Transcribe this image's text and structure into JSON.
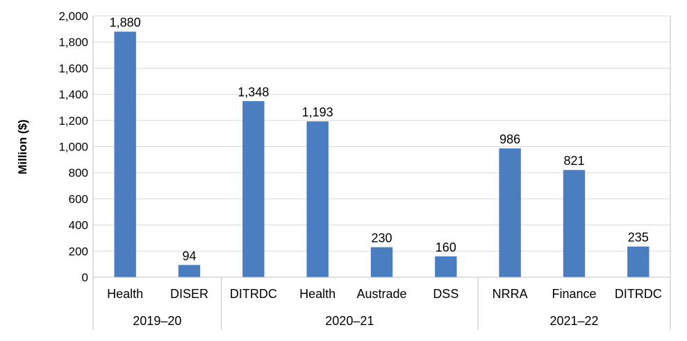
{
  "chart_data": {
    "type": "bar",
    "ylabel": "Million ($)",
    "ylim": [
      0,
      2000
    ],
    "ytick_step": 200,
    "yticks": [
      "0",
      "200",
      "400",
      "600",
      "800",
      "1,000",
      "1,200",
      "1,400",
      "1,600",
      "1,800",
      "2,000"
    ],
    "grid": true,
    "bar_color": "#4A7EC1",
    "groups": [
      {
        "label": "2019–20",
        "categories": [
          "Health",
          "DISER"
        ],
        "values": [
          1880,
          94
        ],
        "value_labels": [
          "1,880",
          "94"
        ]
      },
      {
        "label": "2020–21",
        "categories": [
          "DITRDC",
          "Health",
          "Austrade",
          "DSS"
        ],
        "values": [
          1348,
          1193,
          230,
          160
        ],
        "value_labels": [
          "1,348",
          "1,193",
          "230",
          "160"
        ]
      },
      {
        "label": "2021–22",
        "categories": [
          "NRRA",
          "Finance",
          "DITRDC"
        ],
        "values": [
          986,
          821,
          235
        ],
        "value_labels": [
          "986",
          "821",
          "235"
        ]
      }
    ]
  }
}
